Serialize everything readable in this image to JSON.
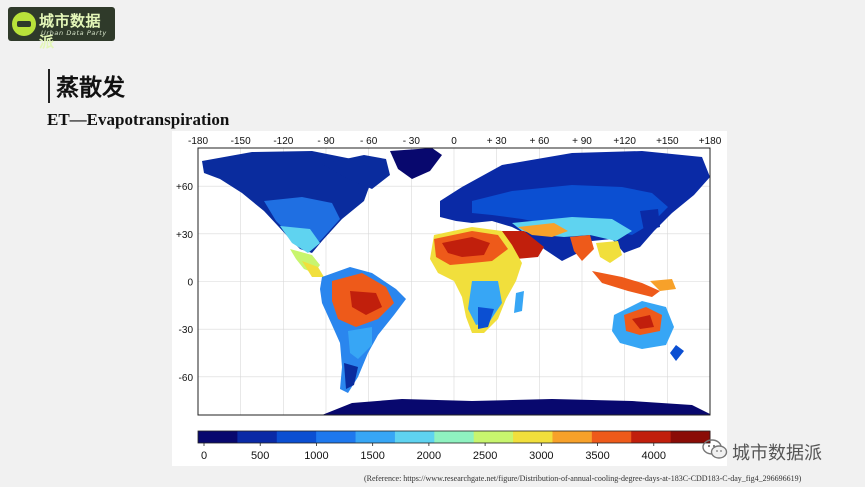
{
  "logo": {
    "title": "城市数据派",
    "subtitle": "Urban Data Party"
  },
  "slide": {
    "title": "蒸散发",
    "subtitle": "ET—Evapotranspiration"
  },
  "map": {
    "type": "choropleth world map",
    "projection": "equirectangular",
    "lon_ticks": [
      "-180",
      "-150",
      "-120",
      "- 90",
      "- 60",
      "- 30",
      "0",
      "+ 30",
      "+ 60",
      "+ 90",
      "+120",
      "+150",
      "+180"
    ],
    "lat_ticks": [
      "+60",
      "+30",
      "0",
      "-30",
      "-60"
    ],
    "colorbar": {
      "ticks": [
        "0",
        "500",
        "1000",
        "1500",
        "2000",
        "2500",
        "3000",
        "3500",
        "4000"
      ],
      "colors": [
        "#08086e",
        "#0a2aa6",
        "#0b4fd2",
        "#1e78ee",
        "#37a6f5",
        "#5fd3f0",
        "#8ff2c0",
        "#c8f56e",
        "#f1df3c",
        "#f7a12a",
        "#ee5a1a",
        "#c11f0c",
        "#8a0c06"
      ]
    }
  },
  "watermark": {
    "text": "城市数据派"
  },
  "reference": "(Reference:  https://www.researchgate.net/figure/Distribution-of-annual-cooling-degree-days-at-183C-CDD183-C-day_fig4_296696619)"
}
